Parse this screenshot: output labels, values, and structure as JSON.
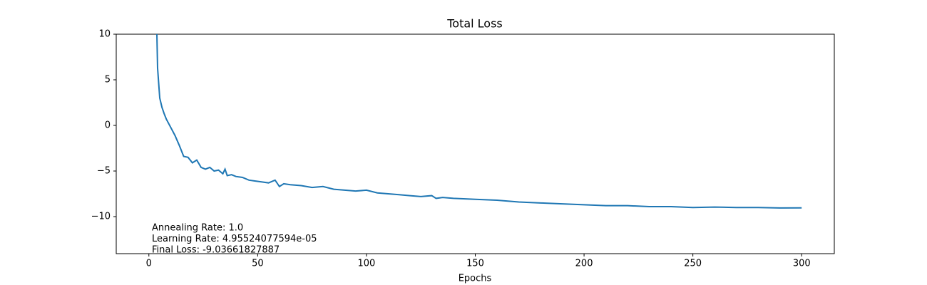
{
  "chart_data": {
    "type": "line",
    "title": "Total Loss",
    "xlabel": "Epochs",
    "x": [
      3,
      4,
      5,
      6,
      7,
      8,
      10,
      12,
      14,
      16,
      18,
      20,
      22,
      24,
      26,
      28,
      30,
      32,
      34,
      35,
      36,
      38,
      40,
      43,
      46,
      49,
      52,
      55,
      58,
      60,
      62,
      65,
      70,
      75,
      80,
      85,
      90,
      95,
      100,
      105,
      110,
      115,
      120,
      125,
      130,
      132,
      135,
      140,
      150,
      160,
      170,
      180,
      190,
      200,
      210,
      220,
      230,
      240,
      250,
      260,
      270,
      280,
      290,
      300
    ],
    "series": [
      {
        "color": "#1f77b4",
        "values": [
          18,
          6.3,
          3.0,
          2.0,
          1.3,
          0.7,
          -0.2,
          -1.1,
          -2.2,
          -3.4,
          -3.5,
          -4.1,
          -3.8,
          -4.6,
          -4.8,
          -4.6,
          -5.0,
          -4.9,
          -5.3,
          -4.8,
          -5.5,
          -5.4,
          -5.6,
          -5.7,
          -6.0,
          -6.1,
          -6.2,
          -6.3,
          -6.0,
          -6.7,
          -6.4,
          -6.5,
          -6.6,
          -6.8,
          -6.7,
          -7.0,
          -7.1,
          -7.2,
          -7.1,
          -7.4,
          -7.5,
          -7.6,
          -7.7,
          -7.8,
          -7.7,
          -8.0,
          -7.9,
          -8.0,
          -8.1,
          -8.2,
          -8.4,
          -8.5,
          -8.6,
          -8.7,
          -8.8,
          -8.8,
          -8.9,
          -8.9,
          -9.0,
          -8.95,
          -9.0,
          -9.0,
          -9.05,
          -9.04
        ]
      }
    ],
    "xlim": [
      -15,
      315
    ],
    "xticks": [
      0,
      50,
      100,
      150,
      200,
      250,
      300
    ],
    "ylim": [
      -14.06,
      10
    ],
    "yticks": [
      {
        "value": -10,
        "label": "−10"
      },
      {
        "value": -5,
        "label": "−5"
      },
      0,
      5,
      10
    ],
    "grid": false,
    "annotations": [
      "Annealing Rate: 1.0",
      "Learning Rate: 4.95524077594e-05",
      "Final Loss: -9.03661827887"
    ]
  }
}
